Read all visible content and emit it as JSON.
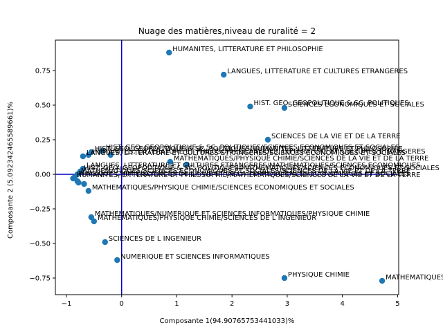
{
  "chart_data": {
    "type": "scatter",
    "title": "Nuage des matières,niveau de ruralité = 2",
    "xlabel": "Composante 1(94.90765753441033)%",
    "ylabel": "Composante 2 (5.092342465589661)%",
    "xlim": [
      -1.2,
      5.02
    ],
    "ylim": [
      -0.87,
      0.97
    ],
    "xticks": [
      -1,
      0,
      1,
      2,
      3,
      4,
      5
    ],
    "yticks": [
      -0.75,
      -0.5,
      -0.25,
      0.0,
      0.25,
      0.5,
      0.75
    ],
    "xtick_labels": [
      "−1",
      "0",
      "1",
      "2",
      "3",
      "4",
      "5"
    ],
    "ytick_labels": [
      "−0.75",
      "−0.50",
      "−0.25",
      "0.00",
      "0.25",
      "0.50",
      "0.75"
    ],
    "reference_lines": {
      "x": 0,
      "y": 0
    },
    "points": [
      {
        "x": 0.86,
        "y": 0.88,
        "label": "HUMANITES, LITTERATURE ET PHILOSOPHIE"
      },
      {
        "x": 1.85,
        "y": 0.72,
        "label": "LANGUES, LITTERATURE ET CULTURES ETRANGERES"
      },
      {
        "x": 2.33,
        "y": 0.49,
        "label": "HIST. GEO. GEOPOLITIQUE & SC. POLITIQUES"
      },
      {
        "x": 2.95,
        "y": 0.48,
        "label": "SCIENCES ECONOMIQUES ET SOCIALES"
      },
      {
        "x": 2.65,
        "y": 0.25,
        "label": "SCIENCES DE LA VIE ET DE LA TERRE"
      },
      {
        "x": -0.35,
        "y": 0.17,
        "label": "HIST. GEO. GEOPOLITIQUE & SC. POLITIQUES/SCIENCES ECONOMIQUES ET SOCIALES"
      },
      {
        "x": -0.55,
        "y": 0.16,
        "label": "HIST. GEO. GEOPOLITIQUE & SC. POLITIQUES/HUMANITES, LITTERATURE ET PHILOSOPHIE"
      },
      {
        "x": -0.6,
        "y": 0.14,
        "label": "HUMANITES, LITTERATURE ET PHILOSOPHIE/LANGUES, LITTERATURE ET CULTURES ETRANGERES"
      },
      {
        "x": -0.7,
        "y": 0.13,
        "label": "LANGUES, LITTERATURE ET CULTURES ETRANGERES/SCIENCES ECONOMIQUES ET SOCIALES"
      },
      {
        "x": -0.2,
        "y": 0.14,
        "label": ""
      },
      {
        "x": 0.88,
        "y": 0.09,
        "label": "MATHEMATIQUES/PHYSIQUE CHIMIE/SCIENCES DE LA VIE ET DE LA TERRE"
      },
      {
        "x": 1.18,
        "y": 0.07,
        "label": ""
      },
      {
        "x": -0.7,
        "y": 0.04,
        "label": "LANGUES, LITTERATURE ET CULTURES ETRANGERES/MATHEMATIQUES/SCIENCES ECONOMIQUES"
      },
      {
        "x": -0.75,
        "y": 0.02,
        "label": "HIST. GEO. GEOPOLITIQUE & SC. POLITIQUES/MATHEMATIQUES/SCIENCES ECONOMIQUES ET SOCIALES"
      },
      {
        "x": -0.8,
        "y": 0.0,
        "label": "MATHEMATIQUES/SCIENCES ECONOMIQUES ET SOCIALES/SCIENCES DE LA VIE ET DE LA TERRE"
      },
      {
        "x": -0.85,
        "y": -0.02,
        "label": "PHYSIQUE CHIMIE/SCIENCES DE LA VIE ET DE LA TERRE/SCIENCES ECONOMIQUES ET SOCIALES"
      },
      {
        "x": -0.88,
        "y": -0.03,
        "label": "HUMANITES, LITTERATURE ET PHILOSOPHIE/MATHEMATIQUES/SCIENCES DE LA VIE ET DE LA TERRE"
      },
      {
        "x": -0.8,
        "y": -0.05,
        "label": ""
      },
      {
        "x": -0.68,
        "y": -0.07,
        "label": ""
      },
      {
        "x": -0.78,
        "y": -0.06,
        "label": ""
      },
      {
        "x": -0.6,
        "y": -0.12,
        "label": "MATHEMATIQUES/PHYSIQUE CHIMIE/SCIENCES ECONOMIQUES ET SOCIALES"
      },
      {
        "x": -0.55,
        "y": -0.31,
        "label": "MATHEMATIQUES/NUMERIQUE ET SCIENCES INFORMATIQUES/PHYSIQUE CHIMIE"
      },
      {
        "x": -0.5,
        "y": -0.34,
        "label": "MATHEMATIQUES/PHYSIQUE CHIMIE/SCIENCES DE L INGENIEUR"
      },
      {
        "x": -0.3,
        "y": -0.49,
        "label": "SCIENCES DE L INGENIEUR"
      },
      {
        "x": -0.08,
        "y": -0.62,
        "label": "NUMERIQUE ET SCIENCES INFORMATIQUES"
      },
      {
        "x": 2.95,
        "y": -0.75,
        "label": "PHYSIQUE CHIMIE"
      },
      {
        "x": 4.72,
        "y": -0.77,
        "label": "MATHEMATIQUES"
      }
    ]
  }
}
